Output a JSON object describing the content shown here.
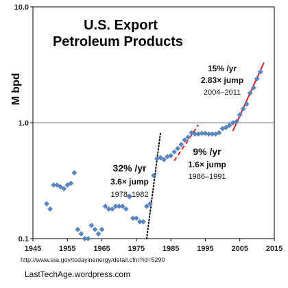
{
  "chart_data": {
    "type": "scatter",
    "title": "U.S. Export",
    "subtitle": "Petroleum Products",
    "ylabel": "M bpd",
    "xlabel": "",
    "yscale": "log",
    "ylim": [
      0.1,
      10.0
    ],
    "xlim": [
      1945,
      2015
    ],
    "x_ticks": [
      1945,
      1955,
      1965,
      1975,
      1985,
      1995,
      2005,
      2015
    ],
    "y_ticks": [
      {
        "value": 0.1,
        "label": "0.1"
      },
      {
        "value": 1.0,
        "label": "1.0"
      },
      {
        "value": 10.0,
        "label": "10.0"
      }
    ],
    "marker_color": "#5b86c1",
    "trend_color": "#d42020",
    "dotted_color": "#000000",
    "x": [
      1949,
      1950,
      1951,
      1952,
      1953,
      1954,
      1955,
      1956,
      1957,
      1958,
      1959,
      1960,
      1961,
      1962,
      1963,
      1964,
      1965,
      1966,
      1967,
      1968,
      1969,
      1970,
      1971,
      1972,
      1973,
      1974,
      1975,
      1976,
      1977,
      1978,
      1979,
      1980,
      1981,
      1982,
      1983,
      1984,
      1985,
      1986,
      1987,
      1988,
      1989,
      1990,
      1991,
      1992,
      1993,
      1994,
      1995,
      1996,
      1997,
      1998,
      1999,
      2000,
      2001,
      2002,
      2003,
      2004,
      2005,
      2006,
      2007,
      2008,
      2009,
      2010,
      2011
    ],
    "values": [
      0.2,
      0.18,
      0.29,
      0.29,
      0.28,
      0.27,
      0.29,
      0.3,
      0.37,
      0.12,
      0.11,
      0.1,
      0.1,
      0.13,
      0.12,
      0.11,
      0.12,
      0.19,
      0.18,
      0.18,
      0.19,
      0.19,
      0.19,
      0.18,
      0.23,
      0.15,
      0.15,
      0.14,
      0.14,
      0.19,
      0.2,
      0.35,
      0.49,
      0.5,
      0.48,
      0.51,
      0.52,
      0.56,
      0.6,
      0.65,
      0.71,
      0.75,
      0.82,
      0.8,
      0.8,
      0.81,
      0.81,
      0.8,
      0.8,
      0.8,
      0.82,
      0.89,
      0.91,
      0.95,
      1.0,
      1.02,
      1.17,
      1.32,
      1.45,
      1.8,
      2.0,
      2.4,
      2.75
    ],
    "trend_lines": [
      {
        "kind": "dotted",
        "x": [
          1978,
          1982
        ],
        "y": [
          0.1,
          0.82
        ]
      },
      {
        "kind": "dashed",
        "x": [
          1986,
          1993
        ],
        "y": [
          0.47,
          0.96
        ]
      },
      {
        "kind": "solid",
        "x": [
          2003,
          2012
        ],
        "y": [
          0.85,
          3.3
        ]
      }
    ],
    "annotations": [
      {
        "rate": "15% /yr",
        "jump": "2.83× jump",
        "period": "2004–2011"
      },
      {
        "rate": "9% /yr",
        "jump": "1.6× jump",
        "period": "1986–1991"
      },
      {
        "rate": "32% /yr",
        "jump": "3.6× jump",
        "period": "1978–1982"
      }
    ]
  },
  "source_url": "http://www.eia.gov/todayinenergy/detail.cfm?id=5290",
  "site": "LastTechAge.wordpress.com"
}
